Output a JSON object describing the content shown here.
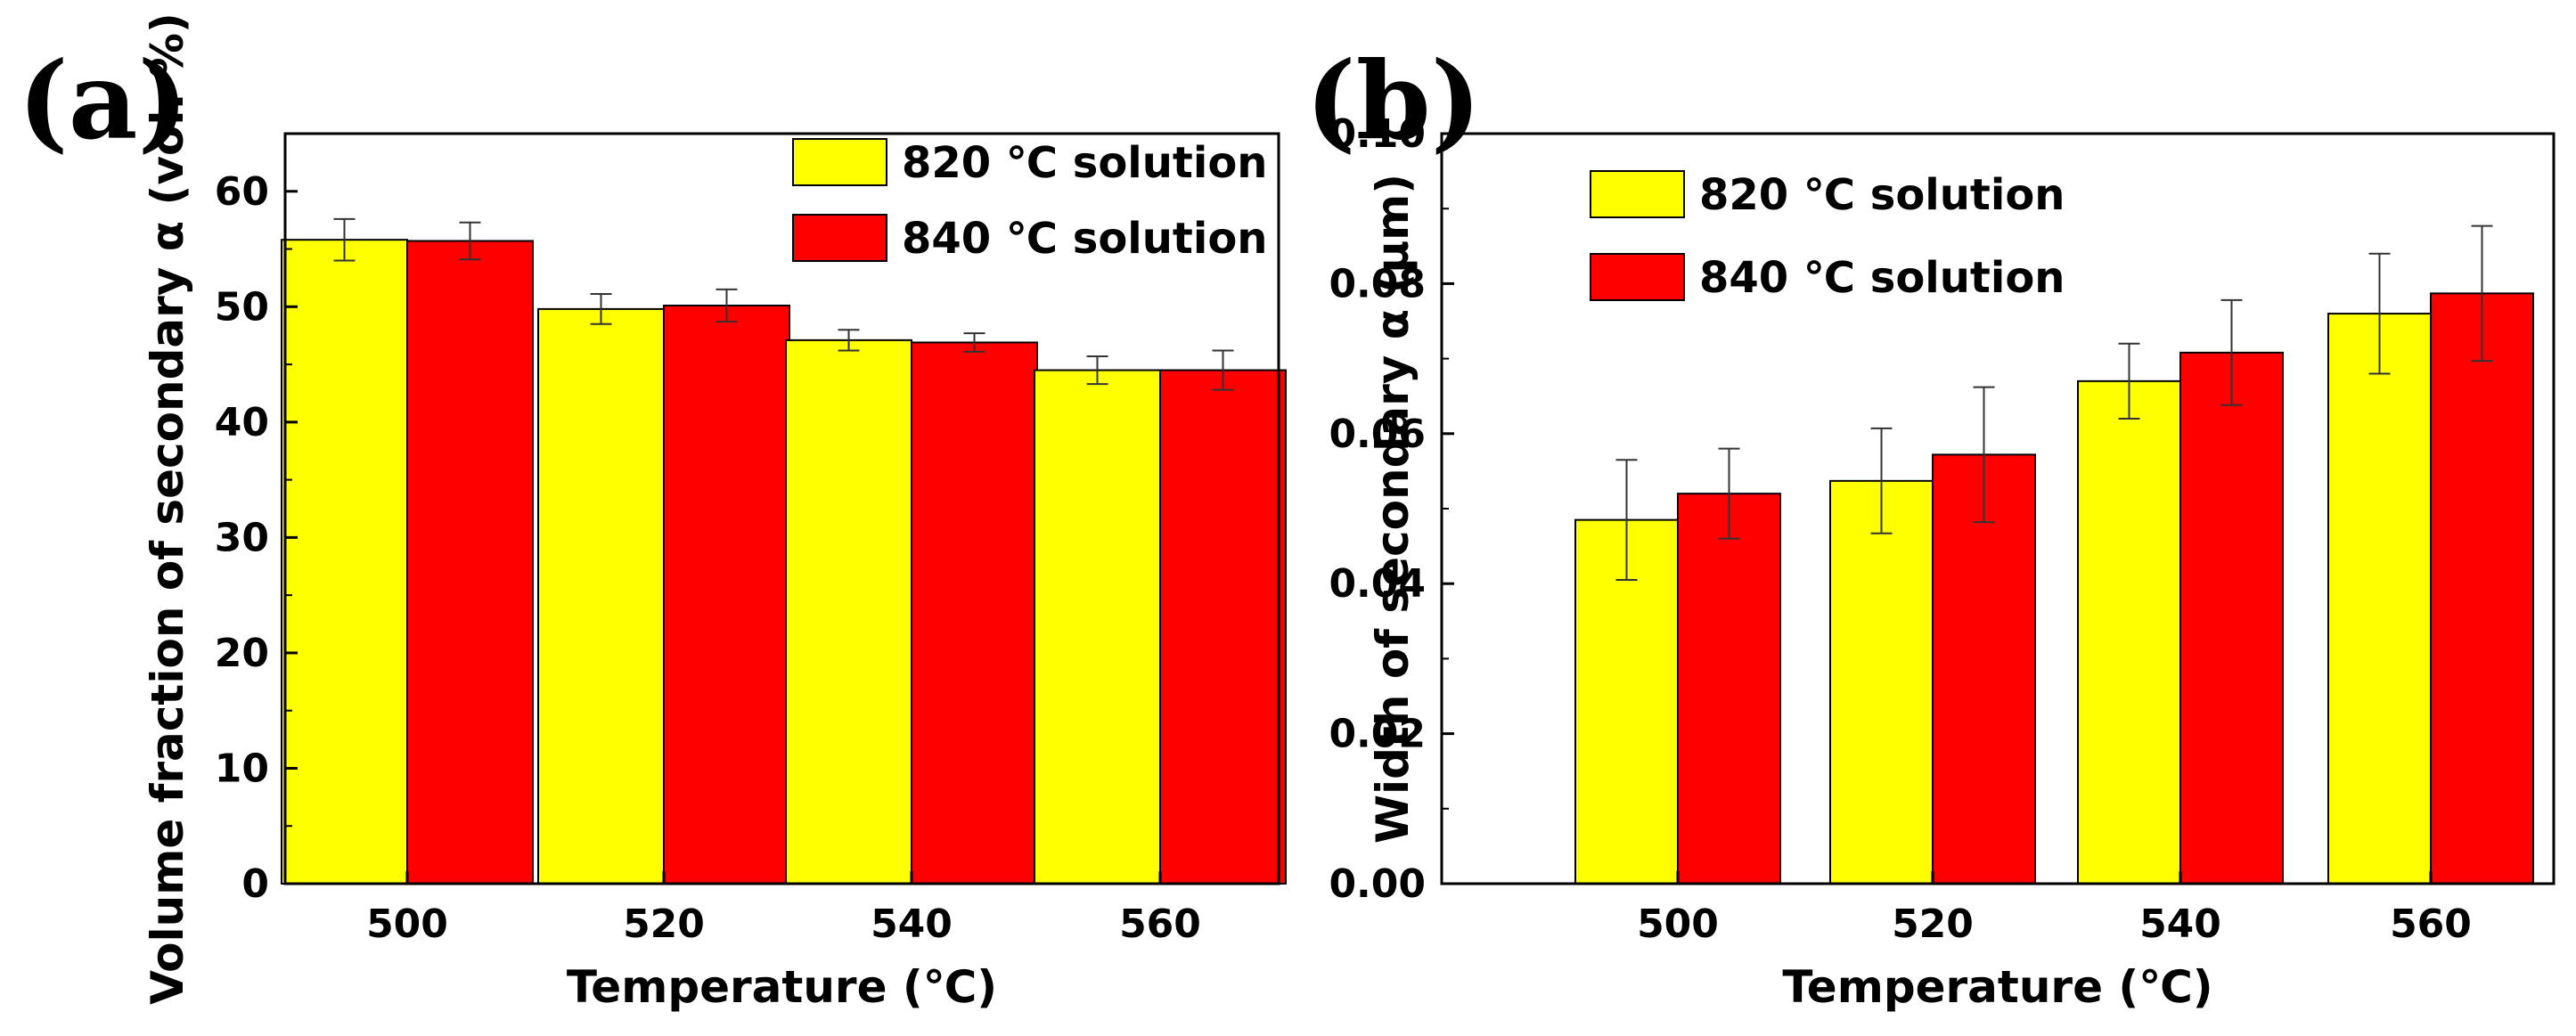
{
  "panels": [
    {
      "letter": "(a)"
    },
    {
      "letter": "(b)"
    }
  ],
  "chart_data": [
    {
      "type": "bar",
      "categories": [
        "500",
        "520",
        "540",
        "560"
      ],
      "xlabel": "Temperature (℃)",
      "ylabel": "Volume fraction of secondary α (vol. %)",
      "ylim": [
        0,
        65
      ],
      "yticks": [
        "0",
        "10",
        "20",
        "30",
        "40",
        "50",
        "60"
      ],
      "legend_position": "top-right",
      "series": [
        {
          "name": "820 ℃ solution",
          "color": "#ffff00",
          "values": [
            55.8,
            49.8,
            47.1,
            44.5
          ],
          "errors": [
            1.8,
            1.3,
            0.9,
            1.2
          ]
        },
        {
          "name": "840 ℃ solution",
          "color": "#ff0000",
          "values": [
            55.7,
            50.1,
            46.9,
            44.5
          ],
          "errors": [
            1.6,
            1.4,
            0.8,
            1.7
          ]
        }
      ]
    },
    {
      "type": "bar",
      "categories": [
        "500",
        "520",
        "540",
        "560"
      ],
      "xlabel": "Temperature (℃)",
      "ylabel": "Width of secondary α (μm)",
      "ylim": [
        0,
        0.1
      ],
      "yticks": [
        "0.00",
        "0.02",
        "0.04",
        "0.06",
        "0.08",
        "0.10"
      ],
      "legend_position": "top-left",
      "series": [
        {
          "name": "820 ℃ solution",
          "color": "#ffff00",
          "values": [
            0.0485,
            0.0537,
            0.067,
            0.076
          ],
          "errors": [
            0.008,
            0.007,
            0.005,
            0.008
          ]
        },
        {
          "name": "840 ℃ solution",
          "color": "#ff0000",
          "values": [
            0.052,
            0.0572,
            0.0708,
            0.0787
          ],
          "errors": [
            0.006,
            0.009,
            0.007,
            0.009
          ]
        }
      ]
    }
  ]
}
